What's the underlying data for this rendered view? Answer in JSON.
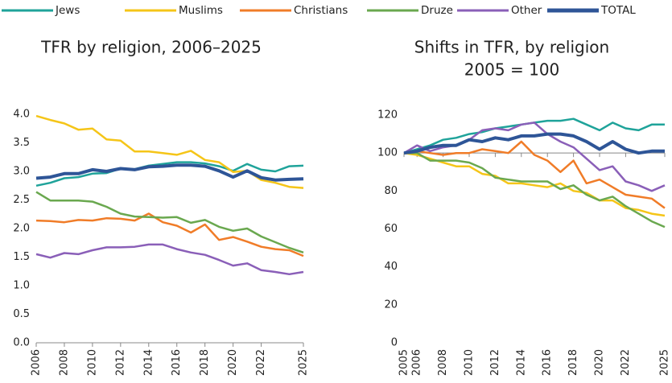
{
  "chart_data": [
    {
      "type": "line",
      "title": "TFR by religion, 2006–2025",
      "x": [
        2006,
        2007,
        2008,
        2009,
        2010,
        2011,
        2012,
        2013,
        2014,
        2015,
        2016,
        2017,
        2018,
        2019,
        2020,
        2021,
        2022,
        2023,
        2024,
        2025
      ],
      "xlim": [
        2006,
        2025
      ],
      "xticks": [
        2006,
        2008,
        2010,
        2012,
        2014,
        2016,
        2018,
        2020,
        2022,
        2025
      ],
      "ylim": [
        0,
        4
      ],
      "yticks": [
        {
          "value": 0,
          "label": "0.0"
        },
        0.5,
        {
          "value": 1,
          "label": "1.0"
        },
        1.5,
        {
          "value": 2,
          "label": "2.0"
        },
        2.5,
        {
          "value": 3,
          "label": "3.0"
        },
        3.5,
        {
          "value": 4,
          "label": "4.0"
        }
      ],
      "series": [
        {
          "name": "Jews",
          "color": "#1fa39a",
          "values": [
            2.75,
            2.8,
            2.88,
            2.9,
            2.96,
            2.97,
            3.05,
            3.04,
            3.1,
            3.13,
            3.16,
            3.16,
            3.14,
            3.09,
            3.01,
            3.13,
            3.03,
            3.0,
            3.09,
            3.1
          ]
        },
        {
          "name": "Muslims",
          "color": "#f5c518",
          "values": [
            3.97,
            3.9,
            3.84,
            3.73,
            3.75,
            3.56,
            3.54,
            3.35,
            3.35,
            3.32,
            3.29,
            3.36,
            3.2,
            3.16,
            2.99,
            3.01,
            2.85,
            2.8,
            2.73,
            2.71
          ]
        },
        {
          "name": "Christians",
          "color": "#f07c28",
          "values": [
            2.14,
            2.13,
            2.11,
            2.15,
            2.14,
            2.18,
            2.17,
            2.14,
            2.26,
            2.11,
            2.05,
            1.93,
            2.07,
            1.8,
            1.85,
            1.77,
            1.68,
            1.64,
            1.62,
            1.52
          ]
        },
        {
          "name": "Druze",
          "color": "#6aa84f",
          "values": [
            2.64,
            2.49,
            2.49,
            2.49,
            2.47,
            2.38,
            2.26,
            2.21,
            2.2,
            2.19,
            2.2,
            2.1,
            2.15,
            2.03,
            1.96,
            2.0,
            1.86,
            1.76,
            1.66,
            1.58
          ]
        },
        {
          "name": "Other",
          "color": "#8a5fb8",
          "values": [
            1.55,
            1.49,
            1.57,
            1.55,
            1.62,
            1.67,
            1.67,
            1.68,
            1.72,
            1.72,
            1.64,
            1.58,
            1.54,
            1.45,
            1.35,
            1.39,
            1.27,
            1.24,
            1.2,
            1.24
          ]
        },
        {
          "name": "TOTAL",
          "color": "#2e5597",
          "values": [
            2.88,
            2.9,
            2.96,
            2.96,
            3.03,
            3.0,
            3.05,
            3.03,
            3.08,
            3.09,
            3.11,
            3.11,
            3.09,
            3.01,
            2.9,
            3.01,
            2.89,
            2.85,
            2.86,
            2.87
          ]
        }
      ]
    },
    {
      "type": "line",
      "title": "Shifts in TFR, by religion",
      "subtitle": "2005 = 100",
      "x": [
        2005,
        2006,
        2007,
        2008,
        2009,
        2010,
        2011,
        2012,
        2013,
        2014,
        2015,
        2016,
        2017,
        2018,
        2019,
        2020,
        2021,
        2022,
        2023,
        2024,
        2025
      ],
      "xlim": [
        2005,
        2025
      ],
      "xticks": [
        2005,
        2006,
        2008,
        2010,
        2012,
        2014,
        2016,
        2018,
        2020,
        2022,
        2025
      ],
      "ylim": [
        0,
        120
      ],
      "yticks": [
        0,
        20,
        40,
        60,
        80,
        100,
        120
      ],
      "axis_crossing": 100,
      "series": [
        {
          "name": "Jews",
          "color": "#1fa39a",
          "values": [
            100,
            102,
            104,
            107,
            108,
            110,
            111,
            113,
            114,
            115,
            116,
            117,
            117,
            118,
            115,
            112,
            116,
            113,
            112,
            115,
            115
          ]
        },
        {
          "name": "Muslims",
          "color": "#f5c518",
          "values": [
            100,
            99,
            97,
            95,
            93,
            93,
            89,
            88,
            84,
            84,
            83,
            82,
            84,
            80,
            79,
            75,
            75,
            71,
            70,
            68,
            67
          ]
        },
        {
          "name": "Christians",
          "color": "#f07c28",
          "values": [
            100,
            101,
            100,
            99,
            100,
            100,
            102,
            101,
            100,
            106,
            99,
            96,
            90,
            96,
            84,
            86,
            82,
            78,
            77,
            76,
            71
          ]
        },
        {
          "name": "Druze",
          "color": "#6aa84f",
          "values": [
            100,
            100,
            96,
            96,
            96,
            95,
            92,
            87,
            86,
            85,
            85,
            85,
            81,
            83,
            78,
            75,
            77,
            72,
            68,
            64,
            61
          ]
        },
        {
          "name": "Other",
          "color": "#8a5fb8",
          "values": [
            100,
            104,
            101,
            103,
            104,
            107,
            112,
            113,
            112,
            115,
            116,
            110,
            106,
            103,
            97,
            91,
            93,
            85,
            83,
            80,
            83
          ]
        },
        {
          "name": "TOTAL",
          "color": "#2e5597",
          "values": [
            100,
            101,
            103,
            104,
            104,
            107,
            106,
            108,
            107,
            109,
            109,
            110,
            110,
            109,
            106,
            102,
            106,
            102,
            100,
            101,
            101
          ]
        }
      ]
    }
  ]
}
